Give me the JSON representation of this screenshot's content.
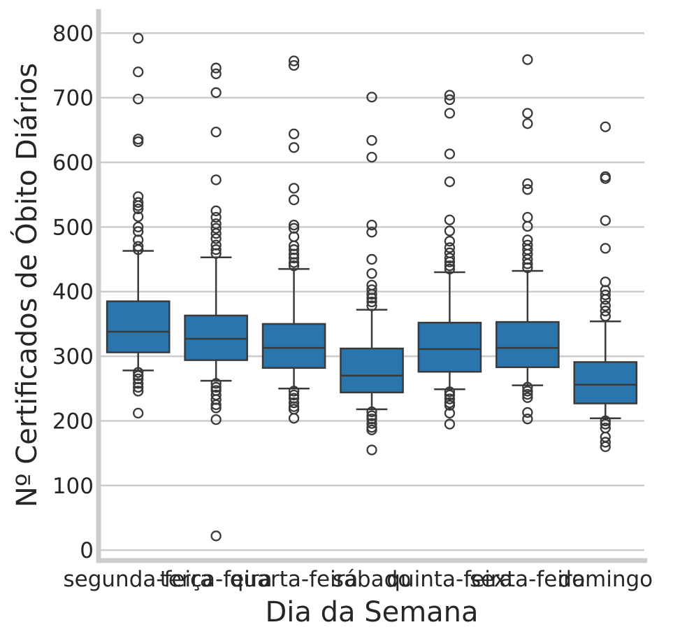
{
  "chart_data": {
    "type": "box",
    "xlabel": "Dia da Semana",
    "ylabel": "Nº Certificados de Óbito Diários",
    "ylim": [
      -15,
      835
    ],
    "yticks": [
      0,
      100,
      200,
      300,
      400,
      500,
      600,
      700,
      800
    ],
    "grid": "horizontal",
    "box_color": "#2a75ac",
    "edge_color": "#3a3a3a",
    "grid_color": "#cccccc",
    "spine_color": "#cccccc",
    "categories": [
      "segunda-feira",
      "terça-feira",
      "quarta-feira",
      "sábado",
      "quinta-feira",
      "sexta-feira",
      "domingo"
    ],
    "boxes": [
      {
        "category": "segunda-feira",
        "whisker_low": 278,
        "q1": 306,
        "median": 338,
        "q3": 385,
        "whisker_high": 463,
        "outliers": [
          792,
          740,
          698,
          636,
          632,
          547,
          538,
          533,
          528,
          516,
          500,
          493,
          480,
          470,
          465,
          275,
          270,
          265,
          258,
          252,
          246,
          212
        ]
      },
      {
        "category": "terça-feira",
        "whisker_low": 262,
        "q1": 294,
        "median": 327,
        "q3": 363,
        "whisker_high": 453,
        "outliers": [
          746,
          737,
          708,
          647,
          573,
          525,
          515,
          505,
          498,
          490,
          482,
          472,
          465,
          459,
          258,
          252,
          247,
          240,
          233,
          225,
          220,
          202,
          22
        ]
      },
      {
        "category": "quarta-feira",
        "whisker_low": 250,
        "q1": 282,
        "median": 313,
        "q3": 350,
        "whisker_high": 435,
        "outliers": [
          757,
          750,
          644,
          623,
          560,
          542,
          503,
          498,
          485,
          471,
          465,
          458,
          452,
          445,
          440,
          246,
          240,
          235,
          228,
          222,
          218,
          204
        ]
      },
      {
        "category": "sábado",
        "whisker_low": 218,
        "q1": 244,
        "median": 270,
        "q3": 312,
        "whisker_high": 372,
        "outliers": [
          701,
          634,
          608,
          503,
          492,
          450,
          428,
          410,
          403,
          396,
          390,
          384,
          378,
          214,
          208,
          203,
          196,
          190,
          186,
          155
        ]
      },
      {
        "category": "quinta-feira",
        "whisker_low": 249,
        "q1": 276,
        "median": 311,
        "q3": 352,
        "whisker_high": 430,
        "outliers": [
          704,
          697,
          676,
          613,
          570,
          511,
          494,
          478,
          468,
          460,
          452,
          446,
          440,
          435,
          245,
          240,
          234,
          228,
          224,
          212,
          195
        ]
      },
      {
        "category": "sexta-feira",
        "whisker_low": 255,
        "q1": 283,
        "median": 313,
        "q3": 353,
        "whisker_high": 432,
        "outliers": [
          759,
          676,
          660,
          567,
          558,
          515,
          501,
          480,
          472,
          465,
          458,
          450,
          443,
          437,
          252,
          246,
          241,
          236,
          213,
          203
        ]
      },
      {
        "category": "domingo",
        "whisker_low": 204,
        "q1": 227,
        "median": 256,
        "q3": 291,
        "whisker_high": 354,
        "outliers": [
          655,
          578,
          575,
          510,
          467,
          415,
          402,
          395,
          388,
          378,
          370,
          362,
          200,
          195,
          189,
          175,
          167,
          160
        ]
      }
    ]
  }
}
